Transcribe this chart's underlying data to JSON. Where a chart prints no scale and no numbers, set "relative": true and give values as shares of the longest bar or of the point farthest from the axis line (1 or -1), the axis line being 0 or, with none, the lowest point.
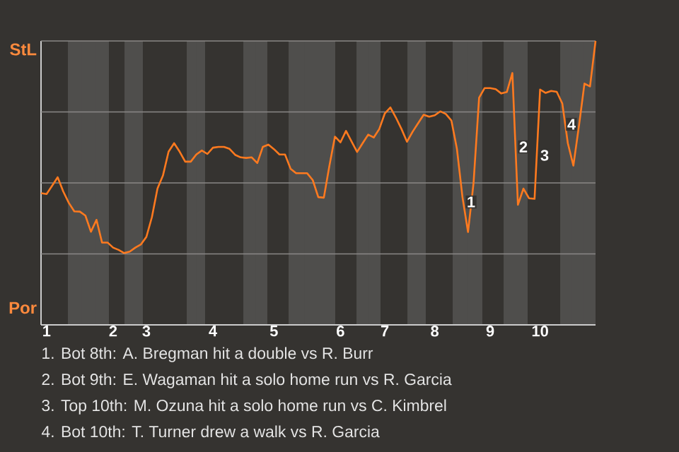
{
  "chart_data": {
    "type": "line",
    "relative": true,
    "categories": [
      null,
      "1",
      null,
      null,
      null,
      null,
      null,
      null,
      null,
      null,
      null,
      null,
      null,
      "2",
      null,
      null,
      null,
      null,
      null,
      "3",
      null,
      null,
      null,
      null,
      null,
      null,
      null,
      null,
      null,
      null,
      null,
      "4",
      null,
      null,
      null,
      null,
      null,
      null,
      null,
      null,
      null,
      null,
      "5",
      null,
      null,
      null,
      null,
      null,
      null,
      null,
      null,
      null,
      null,
      null,
      "6",
      null,
      null,
      null,
      null,
      null,
      null,
      null,
      "7",
      null,
      null,
      null,
      null,
      null,
      null,
      null,
      null,
      "8",
      null,
      null,
      null,
      null,
      null,
      null,
      null,
      null,
      null,
      "9",
      null,
      null,
      null,
      null,
      null,
      null,
      null,
      null,
      "10",
      null,
      null,
      null,
      null,
      null,
      null,
      null,
      null,
      null,
      null
    ],
    "marker": "none",
    "line_style": "solid",
    "series": [
      {
        "color": "#ff7a1f",
        "values": [
          0.464,
          0.461,
          0.49,
          0.52,
          0.47,
          0.43,
          0.4,
          0.399,
          0.385,
          0.328,
          0.37,
          0.29,
          0.29,
          0.272,
          0.264,
          0.253,
          0.258,
          0.272,
          0.283,
          0.31,
          0.38,
          0.48,
          0.527,
          0.61,
          0.64,
          0.61,
          0.575,
          0.575,
          0.6,
          0.614,
          0.602,
          0.624,
          0.627,
          0.627,
          0.62,
          0.599,
          0.59,
          0.588,
          0.59,
          0.57,
          0.627,
          0.635,
          0.619,
          0.6,
          0.6,
          0.55,
          0.534,
          0.534,
          0.534,
          0.51,
          0.45,
          0.448,
          0.56,
          0.663,
          0.643,
          0.683,
          0.646,
          0.609,
          0.64,
          0.67,
          0.66,
          0.69,
          0.745,
          0.766,
          0.73,
          0.69,
          0.645,
          0.68,
          0.71,
          0.74,
          0.733,
          0.738,
          0.752,
          0.743,
          0.72,
          0.62,
          0.45,
          0.327,
          0.5,
          0.8,
          0.834,
          0.834,
          0.83,
          0.815,
          0.82,
          0.887,
          0.423,
          0.48,
          0.446,
          0.444,
          0.829,
          0.817,
          0.824,
          0.821,
          0.78,
          0.64,
          0.561,
          0.7,
          0.85,
          0.84,
          1.0
        ],
        "name": null
      }
    ],
    "ref_lines": [
      {
        "axis": "y",
        "value": 0.25,
        "color": "#8a8886"
      },
      {
        "axis": "y",
        "value": 0.5,
        "color": "#8a8886"
      },
      {
        "axis": "y",
        "value": 0.75,
        "color": "#8a8886"
      },
      {
        "axis": "y",
        "value": 1,
        "color": "#8a8886"
      }
    ],
    "annotations": [
      "StL",
      "Por",
      "1",
      "2",
      "3",
      "4",
      "1. Bot 8th: A. Bregman hit a double vs R. Burr",
      "2. Bot 9th: E. Wagaman hit a solo home run vs R. Garcia",
      "3. Top 10th: M. Ozuna hit a solo home run vs C. Kimbrel",
      "4. Bot 10th: T. Turner drew a walk vs R. Garcia"
    ]
  }
}
